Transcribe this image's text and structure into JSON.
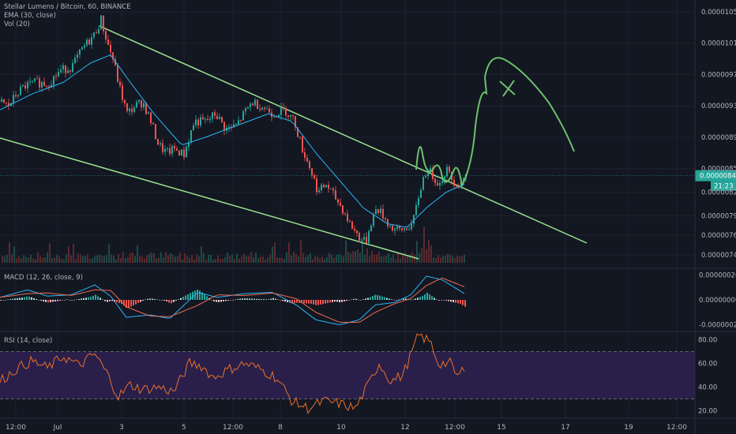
{
  "symbol_title": "Stellar Lumens / Bitcoin, 60, BINANCE",
  "indicator_ema": "EMA (30, close)",
  "indicator_vol": "Vol (20)",
  "indicator_macd": "MACD (12, 26, close, 9)",
  "indicator_rsi": "RSI (14, close)",
  "last_price_label": "0.00000841",
  "countdown_label": "21:23",
  "colors": {
    "background": "#131722",
    "up": "#26a69a",
    "down": "#ef5350",
    "ema": "#29b6f6",
    "trendline": "#9be38f",
    "drawing": "#6cc06b",
    "rsi_line": "#e8702a",
    "rsi_band": "#2a1f4a",
    "macd_line": "#29b6f6",
    "signal_line": "#ef6c50",
    "axis_text": "#b2b5be",
    "last_price_bg": "#26a69a"
  },
  "chart_data": [
    {
      "type": "candlestick",
      "x_ticks": [
        "12:00",
        "Jul",
        "3",
        "5",
        "12:00",
        "8",
        "10",
        "12",
        "12:00",
        "15",
        "17",
        "19",
        "12:00"
      ],
      "y_ticks": [
        "0.00001050",
        "0.00001010",
        "0.00000970",
        "0.00000930",
        "0.00000890",
        "0.00000850",
        "0.00000820",
        "0.00000790",
        "0.00000765",
        "0.00000740"
      ],
      "ylim": [
        7.35e-06,
        1.055e-05
      ],
      "close_path": [
        {
          "t": 0,
          "v": 9.35e-06
        },
        {
          "t": 10,
          "v": 9.3e-06
        },
        {
          "t": 20,
          "v": 9.45e-06
        },
        {
          "t": 30,
          "v": 9.55e-06
        },
        {
          "t": 45,
          "v": 9.6e-06
        },
        {
          "t": 60,
          "v": 9.58e-06
        },
        {
          "t": 75,
          "v": 9.75e-06
        },
        {
          "t": 90,
          "v": 9.8e-06
        },
        {
          "t": 105,
          "v": 1.005e-05
        },
        {
          "t": 118,
          "v": 1.02e-05
        },
        {
          "t": 127,
          "v": 1.04e-05
        },
        {
          "t": 135,
          "v": 1.01e-05
        },
        {
          "t": 142,
          "v": 9.9e-06
        },
        {
          "t": 150,
          "v": 9.55e-06
        },
        {
          "t": 160,
          "v": 9.2e-06
        },
        {
          "t": 170,
          "v": 9.3e-06
        },
        {
          "t": 180,
          "v": 9.35e-06
        },
        {
          "t": 190,
          "v": 9.1e-06
        },
        {
          "t": 200,
          "v": 8.8e-06
        },
        {
          "t": 210,
          "v": 8.7e-06
        },
        {
          "t": 220,
          "v": 8.75e-06
        },
        {
          "t": 232,
          "v": 8.68e-06
        },
        {
          "t": 245,
          "v": 9.1e-06
        },
        {
          "t": 260,
          "v": 9.1e-06
        },
        {
          "t": 272,
          "v": 9.2e-06
        },
        {
          "t": 285,
          "v": 9e-06
        },
        {
          "t": 298,
          "v": 9.05e-06
        },
        {
          "t": 308,
          "v": 9.2e-06
        },
        {
          "t": 318,
          "v": 9.35e-06
        },
        {
          "t": 330,
          "v": 9.3e-06
        },
        {
          "t": 345,
          "v": 9.2e-06
        },
        {
          "t": 360,
          "v": 9.25e-06
        },
        {
          "t": 372,
          "v": 9.1e-06
        },
        {
          "t": 382,
          "v": 8.75e-06
        },
        {
          "t": 392,
          "v": 8.5e-06
        },
        {
          "t": 402,
          "v": 8.2e-06
        },
        {
          "t": 412,
          "v": 8.3e-06
        },
        {
          "t": 422,
          "v": 8.15e-06
        },
        {
          "t": 432,
          "v": 8e-06
        },
        {
          "t": 442,
          "v": 7.8e-06
        },
        {
          "t": 452,
          "v": 7.65e-06
        },
        {
          "t": 462,
          "v": 7.55e-06
        },
        {
          "t": 468,
          "v": 7.8e-06
        },
        {
          "t": 476,
          "v": 8e-06
        },
        {
          "t": 484,
          "v": 7.9e-06
        },
        {
          "t": 494,
          "v": 7.75e-06
        },
        {
          "t": 504,
          "v": 7.7e-06
        },
        {
          "t": 514,
          "v": 7.75e-06
        },
        {
          "t": 522,
          "v": 7.8e-06
        },
        {
          "t": 528,
          "v": 8.1e-06
        },
        {
          "t": 534,
          "v": 8.35e-06
        },
        {
          "t": 540,
          "v": 8.5e-06
        },
        {
          "t": 548,
          "v": 8.4e-06
        },
        {
          "t": 556,
          "v": 8.3e-06
        },
        {
          "t": 564,
          "v": 8.5e-06
        },
        {
          "t": 572,
          "v": 8.35e-06
        },
        {
          "t": 580,
          "v": 8.3e-06
        },
        {
          "t": 588,
          "v": 8.41e-06
        }
      ],
      "ema_path": [
        {
          "t": 0,
          "v": 9.25e-06
        },
        {
          "t": 40,
          "v": 9.45e-06
        },
        {
          "t": 80,
          "v": 9.6e-06
        },
        {
          "t": 115,
          "v": 9.85e-06
        },
        {
          "t": 140,
          "v": 9.95e-06
        },
        {
          "t": 165,
          "v": 9.6e-06
        },
        {
          "t": 195,
          "v": 9.2e-06
        },
        {
          "t": 230,
          "v": 8.8e-06
        },
        {
          "t": 260,
          "v": 8.9e-06
        },
        {
          "t": 300,
          "v": 9.05e-06
        },
        {
          "t": 340,
          "v": 9.2e-06
        },
        {
          "t": 370,
          "v": 9.1e-06
        },
        {
          "t": 400,
          "v": 8.7e-06
        },
        {
          "t": 430,
          "v": 8.35e-06
        },
        {
          "t": 460,
          "v": 8e-06
        },
        {
          "t": 490,
          "v": 7.8e-06
        },
        {
          "t": 515,
          "v": 7.75e-06
        },
        {
          "t": 540,
          "v": 8e-06
        },
        {
          "t": 565,
          "v": 8.2e-06
        },
        {
          "t": 588,
          "v": 8.3e-06
        }
      ],
      "last_price": 8.41e-06
    },
    {
      "type": "line",
      "name": "MACD",
      "y_ticks": [
        "0.00000020",
        "0.00000000",
        "-0.00000020"
      ],
      "ylim": [
        -2.4e-07,
        2.4e-07
      ]
    },
    {
      "type": "line",
      "name": "RSI",
      "y_ticks": [
        "80.00",
        "60.00",
        "40.00",
        "20.00"
      ],
      "ylim": [
        15,
        85
      ],
      "band": [
        30,
        70
      ],
      "rsi_path": [
        {
          "t": 0,
          "v": 45
        },
        {
          "t": 20,
          "v": 55
        },
        {
          "t": 40,
          "v": 62
        },
        {
          "t": 60,
          "v": 56
        },
        {
          "t": 80,
          "v": 66
        },
        {
          "t": 100,
          "v": 58
        },
        {
          "t": 120,
          "v": 68
        },
        {
          "t": 135,
          "v": 52
        },
        {
          "t": 150,
          "v": 32
        },
        {
          "t": 165,
          "v": 42
        },
        {
          "t": 180,
          "v": 38
        },
        {
          "t": 200,
          "v": 40
        },
        {
          "t": 220,
          "v": 36
        },
        {
          "t": 240,
          "v": 60
        },
        {
          "t": 255,
          "v": 58
        },
        {
          "t": 270,
          "v": 48
        },
        {
          "t": 290,
          "v": 55
        },
        {
          "t": 310,
          "v": 60
        },
        {
          "t": 330,
          "v": 55
        },
        {
          "t": 350,
          "v": 48
        },
        {
          "t": 370,
          "v": 28
        },
        {
          "t": 390,
          "v": 22
        },
        {
          "t": 410,
          "v": 28
        },
        {
          "t": 430,
          "v": 26
        },
        {
          "t": 450,
          "v": 22
        },
        {
          "t": 465,
          "v": 40
        },
        {
          "t": 480,
          "v": 60
        },
        {
          "t": 495,
          "v": 45
        },
        {
          "t": 510,
          "v": 50
        },
        {
          "t": 522,
          "v": 70
        },
        {
          "t": 530,
          "v": 84
        },
        {
          "t": 545,
          "v": 78
        },
        {
          "t": 555,
          "v": 60
        },
        {
          "t": 570,
          "v": 60
        },
        {
          "t": 580,
          "v": 48
        },
        {
          "t": 588,
          "v": 57
        }
      ]
    }
  ]
}
